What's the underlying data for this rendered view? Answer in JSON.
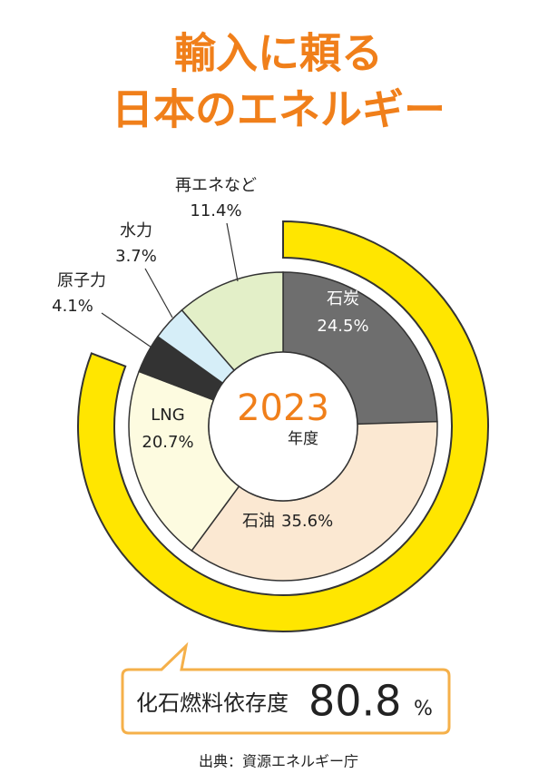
{
  "chart_data": {
    "type": "donut",
    "title": [
      "輸入に頼る",
      "日本のエネルギー"
    ],
    "center_label": {
      "year": "2023",
      "suffix": "年度"
    },
    "categories": [
      "石炭",
      "石油",
      "LNG",
      "原子力",
      "水力",
      "再エネなど"
    ],
    "values": [
      24.5,
      35.6,
      20.7,
      4.1,
      3.7,
      11.4
    ],
    "value_labels": [
      "24.5%",
      "35.6%",
      "20.7%",
      "4.1%",
      "3.7%",
      "11.4%"
    ],
    "colors": [
      "#6e6e6e",
      "#fbe8d2",
      "#fdfbe0",
      "#333333",
      "#d6eef8",
      "#e3efc8"
    ],
    "fossil_dependency": {
      "label": "化石燃料依存度",
      "value": 80.8,
      "value_label": "80.8",
      "unit": "%",
      "color": "#ffe600"
    }
  },
  "source": "出典：資源エネルギー庁"
}
